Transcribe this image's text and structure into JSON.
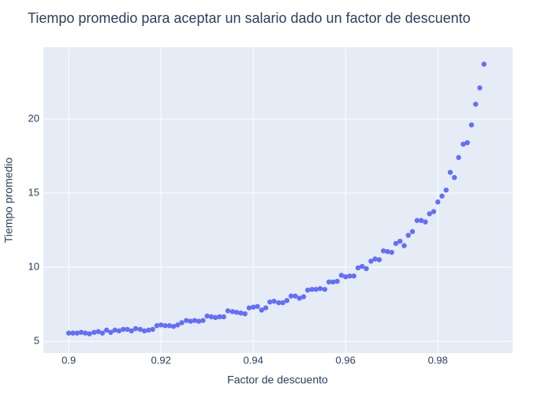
{
  "chart_data": {
    "type": "scatter",
    "title": "Tiempo promedio para aceptar un salario dado un factor de descuento",
    "x_label": "Factor de descuento",
    "y_label": "Tiempo promedio",
    "x": [
      0.9,
      0.9009,
      0.9018,
      0.9027,
      0.9036,
      0.9045,
      0.9055,
      0.9064,
      0.9073,
      0.9082,
      0.9091,
      0.91,
      0.9109,
      0.9118,
      0.9127,
      0.9136,
      0.9145,
      0.9155,
      0.9164,
      0.9173,
      0.9182,
      0.9191,
      0.92,
      0.9209,
      0.9218,
      0.9227,
      0.9236,
      0.9245,
      0.9255,
      0.9264,
      0.9273,
      0.9282,
      0.9291,
      0.93,
      0.9309,
      0.9318,
      0.9327,
      0.9336,
      0.9345,
      0.9355,
      0.9364,
      0.9373,
      0.9382,
      0.9391,
      0.94,
      0.9409,
      0.9418,
      0.9427,
      0.9436,
      0.9445,
      0.9455,
      0.9464,
      0.9473,
      0.9482,
      0.9491,
      0.95,
      0.9509,
      0.9518,
      0.9527,
      0.9536,
      0.9545,
      0.9555,
      0.9564,
      0.9573,
      0.9582,
      0.9591,
      0.96,
      0.9609,
      0.9618,
      0.9627,
      0.9636,
      0.9645,
      0.9655,
      0.9664,
      0.9673,
      0.9682,
      0.9691,
      0.97,
      0.9709,
      0.9718,
      0.9727,
      0.9736,
      0.9745,
      0.9755,
      0.9764,
      0.9773,
      0.9782,
      0.9791,
      0.98,
      0.9809,
      0.9818,
      0.9827,
      0.9836,
      0.9845,
      0.9855,
      0.9864,
      0.9873,
      0.9882,
      0.9891,
      0.99
    ],
    "values": [
      5.55,
      5.55,
      5.55,
      5.6,
      5.55,
      5.5,
      5.6,
      5.65,
      5.55,
      5.75,
      5.6,
      5.75,
      5.7,
      5.8,
      5.8,
      5.7,
      5.85,
      5.8,
      5.7,
      5.75,
      5.8,
      6.05,
      6.1,
      6.05,
      6.05,
      6.0,
      6.1,
      6.25,
      6.4,
      6.35,
      6.4,
      6.35,
      6.4,
      6.7,
      6.65,
      6.6,
      6.65,
      6.65,
      7.05,
      7.0,
      6.95,
      6.9,
      6.85,
      7.25,
      7.3,
      7.35,
      7.1,
      7.25,
      7.65,
      7.7,
      7.6,
      7.6,
      7.75,
      8.05,
      8.05,
      7.9,
      8.0,
      8.45,
      8.5,
      8.5,
      8.55,
      8.5,
      9.0,
      9.0,
      9.05,
      9.45,
      9.35,
      9.4,
      9.4,
      9.95,
      10.05,
      9.9,
      10.4,
      10.55,
      10.5,
      11.1,
      11.05,
      11.0,
      11.6,
      11.75,
      11.45,
      12.15,
      12.4,
      13.15,
      13.15,
      13.05,
      13.6,
      13.75,
      14.4,
      14.8,
      15.2,
      16.4,
      16.05,
      17.4,
      18.3,
      18.4,
      19.6,
      21.0,
      22.1,
      23.7
    ],
    "color": "#636efa",
    "xlim": [
      0.8945,
      0.9962
    ],
    "xticks": [
      0.9,
      0.92,
      0.94,
      0.96,
      0.98
    ],
    "ylim": [
      4.2,
      24.84
    ],
    "yticks": [
      5,
      10,
      15,
      20
    ],
    "grid": true
  }
}
